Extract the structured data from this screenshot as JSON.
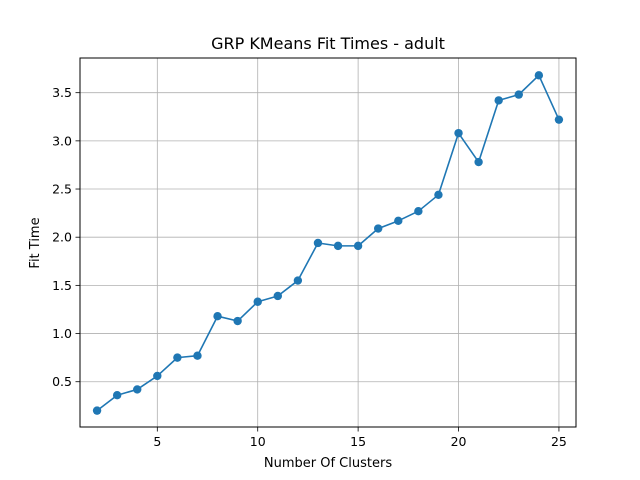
{
  "chart_data": {
    "type": "line",
    "title": "GRP KMeans Fit Times - adult",
    "xlabel": "Number Of Clusters",
    "ylabel": "Fit Time",
    "xlim": [
      1.15,
      25.85
    ],
    "ylim": [
      0.03,
      3.86
    ],
    "grid": true,
    "x_ticks": [
      5,
      10,
      15,
      20,
      25
    ],
    "y_ticks": [
      0.5,
      1.0,
      1.5,
      2.0,
      2.5,
      3.0,
      3.5
    ],
    "x_tick_labels": [
      "5",
      "10",
      "15",
      "20",
      "25"
    ],
    "y_tick_labels": [
      "0.5",
      "1.0",
      "1.5",
      "2.0",
      "2.5",
      "3.0",
      "3.5"
    ],
    "series": [
      {
        "color": "#1f77b4",
        "marker": "circle",
        "x": [
          2,
          3,
          4,
          5,
          6,
          7,
          8,
          9,
          10,
          11,
          12,
          13,
          14,
          15,
          16,
          17,
          18,
          19,
          20,
          21,
          22,
          23,
          24,
          25
        ],
        "y": [
          0.2,
          0.36,
          0.42,
          0.56,
          0.75,
          0.77,
          1.18,
          1.13,
          1.33,
          1.39,
          1.55,
          1.94,
          1.91,
          1.91,
          2.09,
          2.17,
          2.27,
          2.44,
          3.08,
          2.78,
          3.42,
          3.48,
          3.68,
          3.22
        ]
      }
    ]
  }
}
